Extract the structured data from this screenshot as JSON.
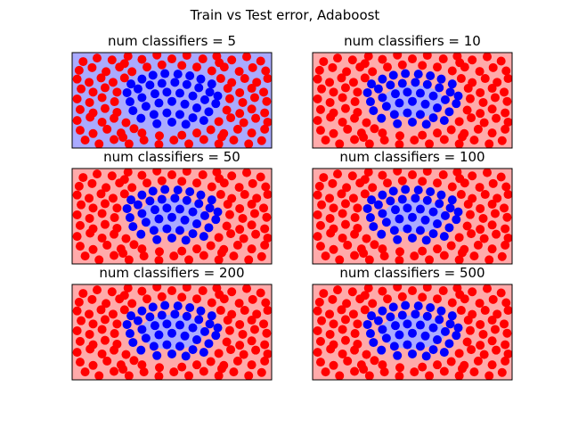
{
  "figure": {
    "title": "Train vs Test error, Adaboost"
  },
  "colors": {
    "region_positive": "#ffaaaa",
    "region_negative": "#aaaaff",
    "point_positive": "#ff0000",
    "point_negative": "#0000ff",
    "frame": "#000000"
  },
  "chart_data": [
    {
      "type": "scatter",
      "title": "num classifiers = 5",
      "classifiers": 5,
      "background": "negative",
      "region": {
        "cx": 0,
        "cy": 0,
        "rx": 0,
        "ry": 0
      }
    },
    {
      "type": "scatter",
      "title": "num classifiers = 10",
      "classifiers": 10,
      "background": "positive",
      "region": {
        "cx": 0.02,
        "cy": -0.04,
        "rx": 0.62,
        "ry": 0.6
      }
    },
    {
      "type": "scatter",
      "title": "num classifiers = 50",
      "classifiers": 50,
      "background": "positive",
      "region": {
        "cx": 0.0,
        "cy": 0.02,
        "rx": 0.64,
        "ry": 0.64
      }
    },
    {
      "type": "scatter",
      "title": "num classifiers = 100",
      "classifiers": 100,
      "background": "positive",
      "region": {
        "cx": 0.04,
        "cy": 0.0,
        "rx": 0.62,
        "ry": 0.62
      }
    },
    {
      "type": "scatter",
      "title": "num classifiers = 200",
      "classifiers": 200,
      "background": "positive",
      "region": {
        "cx": 0.0,
        "cy": 0.0,
        "rx": 0.64,
        "ry": 0.64
      }
    },
    {
      "type": "scatter",
      "title": "num classifiers = 500",
      "classifiers": 500,
      "background": "positive",
      "region": {
        "cx": 0.0,
        "cy": 0.0,
        "rx": 0.66,
        "ry": 0.62
      }
    }
  ],
  "points": {
    "positive": [
      [
        -1.78,
        1.42
      ],
      [
        -1.5,
        1.55
      ],
      [
        -1.2,
        1.48
      ],
      [
        -0.88,
        1.62
      ],
      [
        -0.6,
        1.5
      ],
      [
        -0.3,
        1.66
      ],
      [
        0.0,
        1.52
      ],
      [
        0.3,
        1.65
      ],
      [
        0.62,
        1.52
      ],
      [
        0.9,
        1.62
      ],
      [
        1.2,
        1.48
      ],
      [
        1.5,
        1.6
      ],
      [
        1.78,
        1.44
      ],
      [
        -1.86,
        1.1
      ],
      [
        -1.6,
        1.2
      ],
      [
        -1.32,
        1.05
      ],
      [
        -1.05,
        1.22
      ],
      [
        -0.8,
        1.05
      ],
      [
        0.8,
        1.08
      ],
      [
        1.05,
        1.22
      ],
      [
        1.35,
        1.06
      ],
      [
        1.62,
        1.2
      ],
      [
        1.88,
        1.08
      ],
      [
        -1.9,
        0.78
      ],
      [
        -1.66,
        0.66
      ],
      [
        -1.42,
        0.82
      ],
      [
        -1.18,
        0.66
      ],
      [
        -0.95,
        0.82
      ],
      [
        0.98,
        0.8
      ],
      [
        1.2,
        0.65
      ],
      [
        1.46,
        0.8
      ],
      [
        1.7,
        0.66
      ],
      [
        1.92,
        0.8
      ],
      [
        -1.82,
        0.42
      ],
      [
        -1.58,
        0.3
      ],
      [
        -1.34,
        0.46
      ],
      [
        -1.1,
        0.3
      ],
      [
        1.12,
        0.44
      ],
      [
        1.36,
        0.28
      ],
      [
        1.6,
        0.44
      ],
      [
        1.84,
        0.3
      ],
      [
        -1.9,
        0.05
      ],
      [
        -1.65,
        -0.08
      ],
      [
        -1.4,
        0.1
      ],
      [
        -1.15,
        -0.05
      ],
      [
        1.16,
        0.06
      ],
      [
        1.42,
        -0.08
      ],
      [
        1.66,
        0.1
      ],
      [
        1.9,
        -0.04
      ],
      [
        -1.84,
        -0.34
      ],
      [
        -1.58,
        -0.46
      ],
      [
        -1.34,
        -0.3
      ],
      [
        -1.1,
        -0.44
      ],
      [
        1.1,
        -0.36
      ],
      [
        1.36,
        -0.48
      ],
      [
        1.6,
        -0.32
      ],
      [
        1.86,
        -0.46
      ],
      [
        -1.9,
        -0.74
      ],
      [
        -1.64,
        -0.62
      ],
      [
        -1.4,
        -0.8
      ],
      [
        -1.16,
        -0.66
      ],
      [
        -0.92,
        -0.82
      ],
      [
        0.94,
        -0.78
      ],
      [
        1.18,
        -0.64
      ],
      [
        1.44,
        -0.82
      ],
      [
        1.68,
        -0.66
      ],
      [
        1.92,
        -0.8
      ],
      [
        -1.84,
        -1.1
      ],
      [
        -1.58,
        -1.22
      ],
      [
        -1.3,
        -1.06
      ],
      [
        -1.02,
        -1.2
      ],
      [
        -0.76,
        -1.04
      ],
      [
        0.78,
        -1.08
      ],
      [
        1.04,
        -1.22
      ],
      [
        1.32,
        -1.06
      ],
      [
        1.6,
        -1.2
      ],
      [
        1.86,
        -1.06
      ],
      [
        -1.74,
        -1.46
      ],
      [
        -1.46,
        -1.6
      ],
      [
        -1.16,
        -1.44
      ],
      [
        -0.86,
        -1.6
      ],
      [
        -0.56,
        -1.46
      ],
      [
        -0.26,
        -1.62
      ],
      [
        0.04,
        -1.46
      ],
      [
        0.34,
        -1.6
      ],
      [
        0.64,
        -1.44
      ],
      [
        0.94,
        -1.6
      ],
      [
        1.24,
        -1.46
      ],
      [
        1.54,
        -1.6
      ],
      [
        1.8,
        -1.48
      ],
      [
        -0.5,
        1.22
      ],
      [
        -0.2,
        1.3
      ],
      [
        0.2,
        1.28
      ],
      [
        0.5,
        1.22
      ],
      [
        -0.6,
        -1.2
      ],
      [
        -0.25,
        -1.3
      ],
      [
        0.2,
        -1.28
      ],
      [
        0.5,
        -1.2
      ],
      [
        -0.95,
        1.35
      ],
      [
        0.95,
        1.38
      ],
      [
        -0.98,
        -1.36
      ],
      [
        1.0,
        -1.34
      ]
    ],
    "negative": [
      [
        -0.82,
        0.6
      ],
      [
        -0.6,
        0.78
      ],
      [
        -0.38,
        0.92
      ],
      [
        -0.14,
        0.98
      ],
      [
        0.12,
        0.96
      ],
      [
        0.36,
        0.9
      ],
      [
        0.58,
        0.78
      ],
      [
        0.8,
        0.6
      ],
      [
        -0.9,
        0.28
      ],
      [
        -0.68,
        0.42
      ],
      [
        -0.44,
        0.56
      ],
      [
        -0.2,
        0.62
      ],
      [
        0.06,
        0.66
      ],
      [
        0.3,
        0.58
      ],
      [
        0.54,
        0.46
      ],
      [
        0.76,
        0.3
      ],
      [
        0.92,
        0.16
      ],
      [
        -0.84,
        -0.05
      ],
      [
        -0.6,
        0.1
      ],
      [
        -0.34,
        0.24
      ],
      [
        -0.1,
        0.3
      ],
      [
        0.16,
        0.26
      ],
      [
        0.42,
        0.16
      ],
      [
        0.66,
        0.02
      ],
      [
        0.88,
        -0.12
      ],
      [
        -0.78,
        -0.38
      ],
      [
        -0.52,
        -0.22
      ],
      [
        -0.26,
        -0.1
      ],
      [
        0.0,
        -0.04
      ],
      [
        0.26,
        -0.14
      ],
      [
        0.5,
        -0.28
      ],
      [
        0.74,
        -0.42
      ],
      [
        -0.62,
        -0.66
      ],
      [
        -0.36,
        -0.52
      ],
      [
        -0.1,
        -0.46
      ],
      [
        0.16,
        -0.52
      ],
      [
        0.42,
        -0.64
      ],
      [
        0.64,
        -0.74
      ],
      [
        -0.3,
        -0.86
      ],
      [
        0.0,
        -0.8
      ],
      [
        0.28,
        -0.88
      ]
    ]
  }
}
